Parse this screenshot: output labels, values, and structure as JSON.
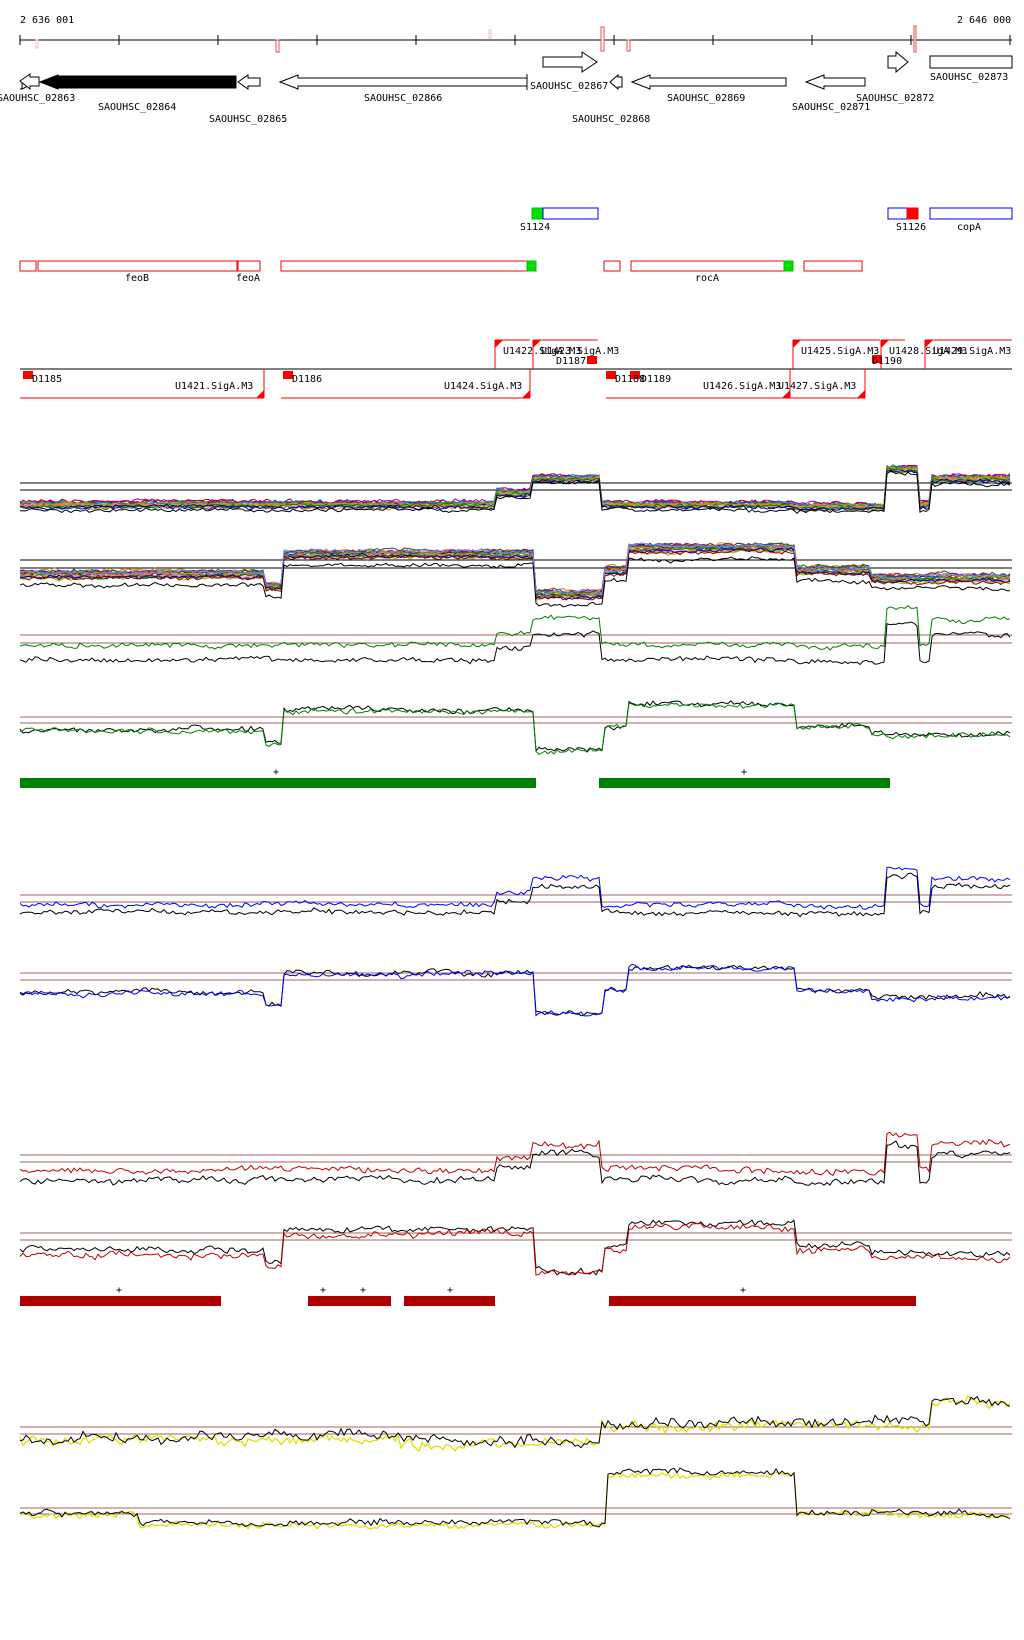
{
  "ruler": {
    "start_label": "2 636 001",
    "end_label": "2 646 000"
  },
  "genes": [
    {
      "id": "SAOUHSC_02863",
      "strand": "-",
      "filled": false
    },
    {
      "id": "SAOUHSC_02864",
      "strand": "-",
      "filled": true
    },
    {
      "id": "SAOUHSC_02865",
      "strand": "-",
      "filled": false
    },
    {
      "id": "SAOUHSC_02866",
      "strand": "-",
      "filled": false
    },
    {
      "id": "SAOUHSC_02867",
      "strand": "+",
      "filled": false
    },
    {
      "id": "SAOUHSC_02868",
      "strand": "-",
      "filled": false
    },
    {
      "id": "SAOUHSC_02869",
      "strand": "-",
      "filled": false
    },
    {
      "id": "SAOUHSC_02871",
      "strand": "-",
      "filled": false
    },
    {
      "id": "SAOUHSC_02872",
      "strand": "+",
      "filled": false
    },
    {
      "id": "SAOUHSC_02873",
      "strand": "+",
      "filled": false
    }
  ],
  "plus_features": [
    "S1124",
    "S1126",
    "copA"
  ],
  "minus_features": [
    "feoB",
    "feoA",
    "rocA"
  ],
  "promoters": [
    "U1422.SigA.M3",
    "U1423.SigA.M3",
    "U1425.SigA.M3",
    "U1428.SigA.M3",
    "U1429.SigA.M3",
    "U1421.SigA.M3",
    "U1424.SigA.M3",
    "U1426.SigA.M3",
    "U1427.SigA.M3"
  ],
  "terminators": [
    "D1185",
    "D1186",
    "D1187",
    "D1188",
    "D1189",
    "D1190"
  ],
  "segment_marks": [
    "+",
    "+",
    "+",
    "+",
    "+",
    "+",
    "+"
  ],
  "colors": {
    "red": "#ff0000",
    "green": "#008000",
    "blue": "#0000ff",
    "dark_red": "#b00000",
    "yellow": "#e8e800"
  }
}
